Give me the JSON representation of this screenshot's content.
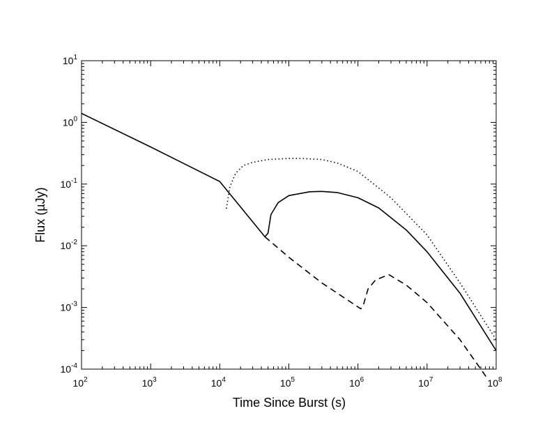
{
  "chart_data": {
    "type": "line",
    "title": "",
    "xlabel": "Time Since Burst (s)",
    "ylabel": "Flux (µJy)",
    "xscale": "log",
    "yscale": "log",
    "xlim": [
      100,
      100000000
    ],
    "ylim": [
      0.0001,
      10
    ],
    "x_tick_exponents": [
      "2",
      "3",
      "4",
      "5",
      "6",
      "7",
      "8"
    ],
    "y_tick_exponents": [
      "-4",
      "-3",
      "-2",
      "-1",
      "0",
      "1"
    ],
    "tick_base": "10",
    "grid": false,
    "legend": "none",
    "series": [
      {
        "style": "solid",
        "x": [
          100,
          1000,
          10000,
          45000,
          50000,
          55000,
          70000,
          100000,
          200000,
          300000,
          500000,
          1000000,
          2000000,
          5000000,
          10000000,
          30000000,
          100000000
        ],
        "y": [
          1.4,
          0.4,
          0.11,
          0.014,
          0.016,
          0.032,
          0.05,
          0.065,
          0.075,
          0.076,
          0.073,
          0.06,
          0.041,
          0.018,
          0.008,
          0.0017,
          0.0002
        ]
      },
      {
        "style": "dotted",
        "x": [
          12500,
          14000,
          17000,
          22000,
          30000,
          50000,
          100000,
          150000,
          300000,
          500000,
          1000000,
          3000000,
          10000000,
          30000000,
          100000000
        ],
        "y": [
          0.04,
          0.09,
          0.15,
          0.2,
          0.225,
          0.25,
          0.26,
          0.26,
          0.25,
          0.22,
          0.16,
          0.06,
          0.015,
          0.0025,
          0.0003
        ]
      },
      {
        "style": "dashed",
        "x": [
          45000,
          100000,
          300000,
          1100000,
          1200000,
          1400000,
          1800000,
          2800000,
          5000000,
          10000000,
          30000000,
          75000000
        ],
        "y": [
          0.014,
          0.0065,
          0.0025,
          0.00095,
          0.0011,
          0.002,
          0.0028,
          0.0034,
          0.0023,
          0.0012,
          0.0003,
          7e-05
        ]
      }
    ]
  }
}
